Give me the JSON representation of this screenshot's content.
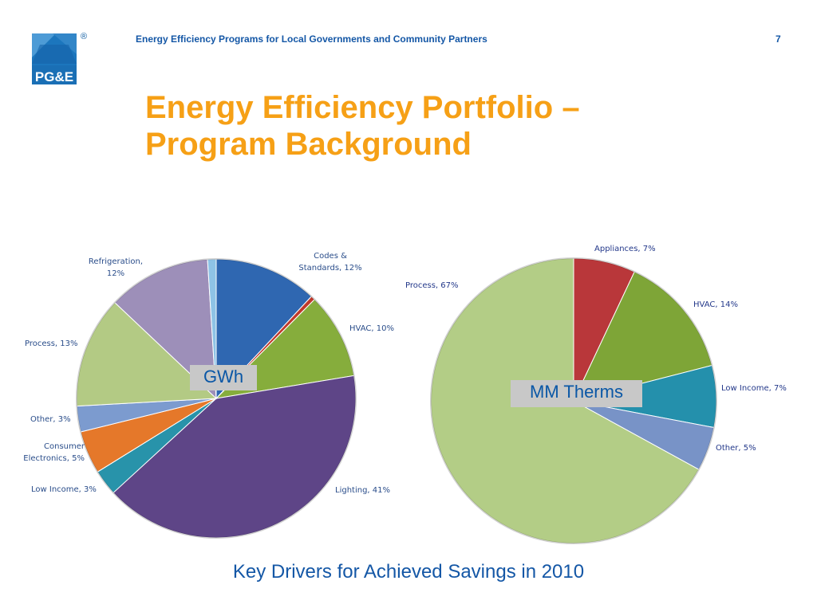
{
  "header": {
    "logo_text": "PG&E",
    "registered_mark": "®",
    "title": "Energy Efficiency Programs for Local Governments and Community Partners",
    "page_number": "7"
  },
  "slide": {
    "title_line1": "Energy Efficiency Portfolio –",
    "title_line2": "Program Background",
    "caption": "Key Drivers for Achieved Savings in 2010"
  },
  "chart_data": [
    {
      "type": "pie",
      "center_label": "GWh",
      "slices": [
        {
          "label": "Codes & Standards, 12%",
          "value": 12,
          "color": "#2f67b1"
        },
        {
          "label": "",
          "value": 0.5,
          "color": "#c0392b"
        },
        {
          "label": "HVAC, 10%",
          "value": 10,
          "color": "#86ad3c"
        },
        {
          "label": "Lighting, 41%",
          "value": 41,
          "color": "#5e4587"
        },
        {
          "label": "Low Income, 3%",
          "value": 3,
          "color": "#2893aa"
        },
        {
          "label": "Consumer Electronics, 5%",
          "value": 5,
          "color": "#e5782a"
        },
        {
          "label": "Other, 3%",
          "value": 3,
          "color": "#7c9bcf"
        },
        {
          "label": "Process, 13%",
          "value": 13,
          "color": "#b3ca84"
        },
        {
          "label": "Refrigeration, 12%",
          "value": 12,
          "color": "#9d8fb9"
        },
        {
          "label": "",
          "value": 1,
          "color": "#8ec3e6"
        }
      ]
    },
    {
      "type": "pie",
      "center_label": "MM Therms",
      "slices": [
        {
          "label": "Appliances, 7%",
          "value": 7,
          "color": "#b9373a"
        },
        {
          "label": "HVAC, 14%",
          "value": 14,
          "color": "#7ea537"
        },
        {
          "label": "Low Income, 7%",
          "value": 7,
          "color": "#2490ac"
        },
        {
          "label": "Other, 5%",
          "value": 5,
          "color": "#7893c7"
        },
        {
          "label": "Process, 67%",
          "value": 67,
          "color": "#b3cd86"
        }
      ]
    }
  ]
}
